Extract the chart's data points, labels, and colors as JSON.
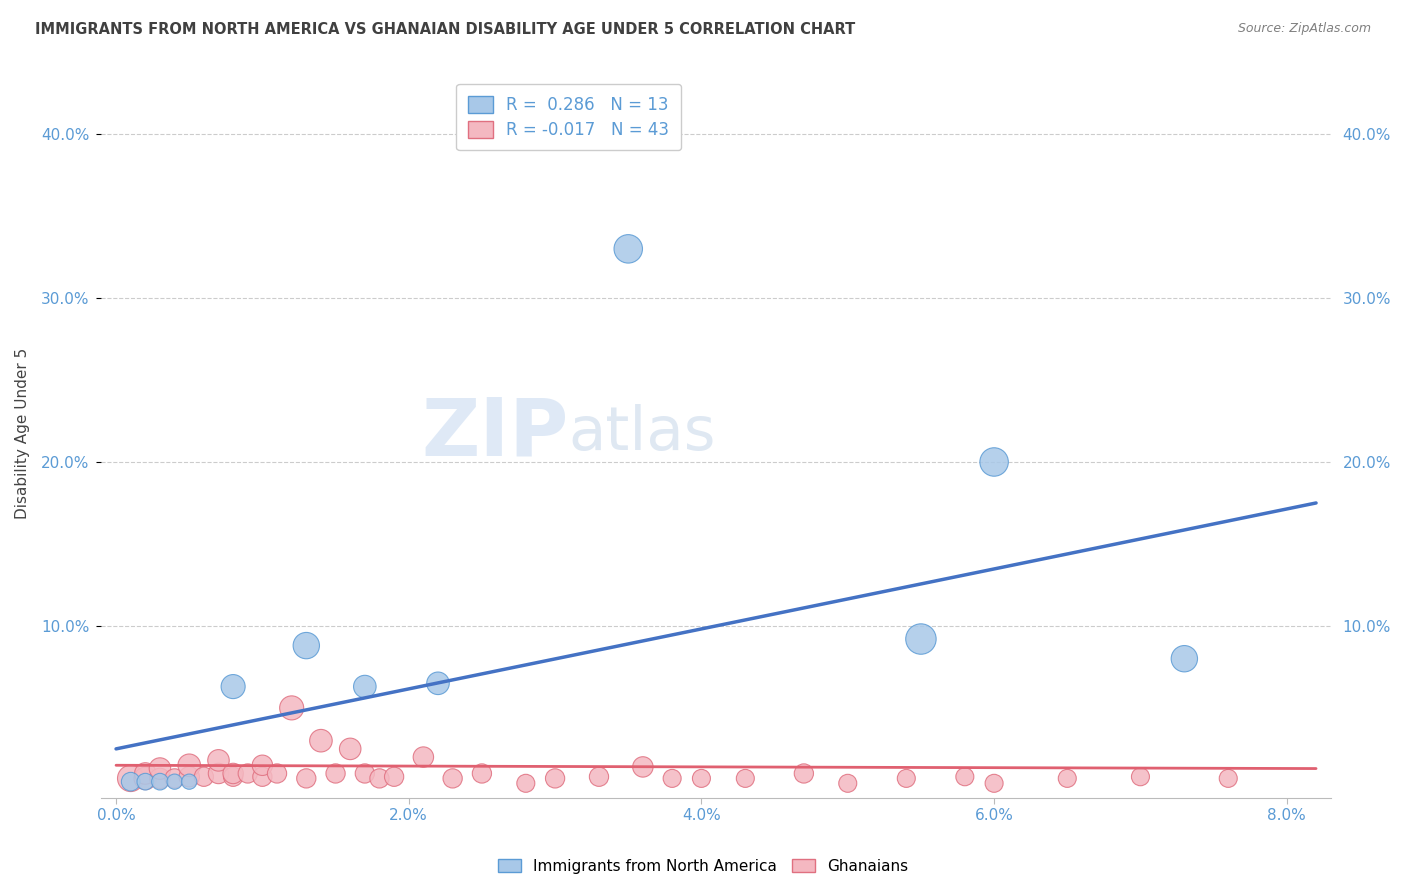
{
  "title": "IMMIGRANTS FROM NORTH AMERICA VS GHANAIAN DISABILITY AGE UNDER 5 CORRELATION CHART",
  "source": "Source: ZipAtlas.com",
  "ylabel": "Disability Age Under 5",
  "xlim": [
    -0.001,
    0.083
  ],
  "ylim": [
    -0.005,
    0.44
  ],
  "xtick_vals": [
    0.0,
    0.02,
    0.04,
    0.06,
    0.08
  ],
  "ytick_vals": [
    0.1,
    0.2,
    0.3,
    0.4
  ],
  "blue_R": 0.286,
  "blue_N": 13,
  "pink_R": -0.017,
  "pink_N": 43,
  "legend_label_blue": "Immigrants from North America",
  "legend_label_pink": "Ghanaians",
  "blue_fill": "#a8c8e8",
  "blue_edge": "#5b9bd5",
  "pink_fill": "#f4b8c1",
  "pink_edge": "#e07080",
  "blue_line_color": "#4472c4",
  "pink_line_color": "#e06070",
  "blue_trend_x": [
    0.0,
    0.082
  ],
  "blue_trend_y": [
    0.025,
    0.175
  ],
  "pink_trend_x": [
    0.0,
    0.082
  ],
  "pink_trend_y": [
    0.015,
    0.013
  ],
  "blue_scatter_x": [
    0.001,
    0.002,
    0.003,
    0.004,
    0.005,
    0.008,
    0.013,
    0.017,
    0.022,
    0.035,
    0.055,
    0.06,
    0.073
  ],
  "blue_scatter_y": [
    0.005,
    0.005,
    0.005,
    0.005,
    0.005,
    0.063,
    0.088,
    0.063,
    0.065,
    0.33,
    0.092,
    0.2,
    0.08
  ],
  "blue_scatter_size": [
    15,
    12,
    12,
    10,
    10,
    25,
    30,
    22,
    22,
    35,
    40,
    35,
    30
  ],
  "pink_scatter_x": [
    0.001,
    0.002,
    0.002,
    0.003,
    0.003,
    0.004,
    0.005,
    0.005,
    0.006,
    0.007,
    0.007,
    0.008,
    0.008,
    0.009,
    0.01,
    0.01,
    0.011,
    0.012,
    0.013,
    0.014,
    0.015,
    0.016,
    0.017,
    0.018,
    0.019,
    0.021,
    0.023,
    0.025,
    0.028,
    0.03,
    0.033,
    0.036,
    0.038,
    0.04,
    0.043,
    0.047,
    0.05,
    0.054,
    0.058,
    0.06,
    0.065,
    0.07,
    0.076
  ],
  "pink_scatter_y": [
    0.007,
    0.007,
    0.01,
    0.007,
    0.013,
    0.007,
    0.008,
    0.015,
    0.008,
    0.01,
    0.018,
    0.008,
    0.01,
    0.01,
    0.008,
    0.015,
    0.01,
    0.05,
    0.007,
    0.03,
    0.01,
    0.025,
    0.01,
    0.007,
    0.008,
    0.02,
    0.007,
    0.01,
    0.004,
    0.007,
    0.008,
    0.014,
    0.007,
    0.007,
    0.007,
    0.01,
    0.004,
    0.007,
    0.008,
    0.004,
    0.007,
    0.008,
    0.007
  ],
  "pink_scatter_size": [
    30,
    22,
    20,
    18,
    20,
    16,
    18,
    22,
    16,
    18,
    20,
    16,
    18,
    16,
    16,
    18,
    16,
    25,
    16,
    22,
    16,
    20,
    16,
    16,
    16,
    18,
    16,
    16,
    14,
    16,
    16,
    18,
    14,
    14,
    14,
    16,
    14,
    14,
    14,
    14,
    14,
    14,
    14
  ],
  "watermark_zip": "ZIP",
  "watermark_atlas": "atlas",
  "background_color": "#ffffff",
  "grid_color": "#cccccc",
  "tick_color": "#5b9bd5",
  "title_color": "#404040",
  "source_color": "#808080"
}
